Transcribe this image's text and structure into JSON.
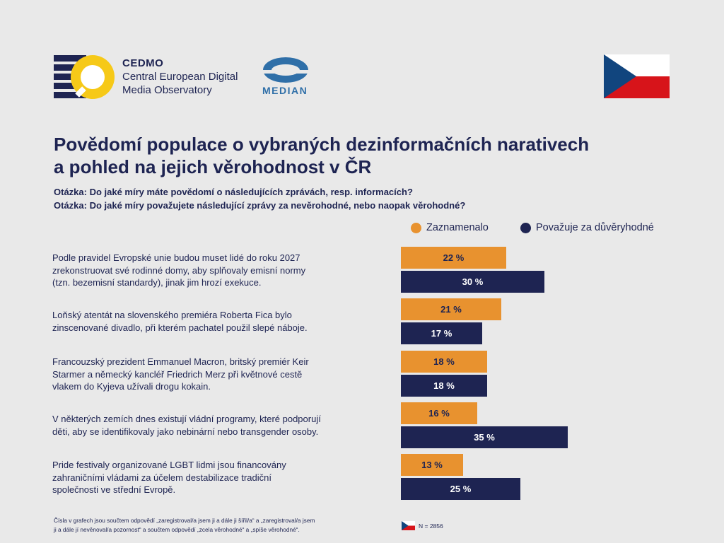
{
  "header": {
    "cedmo_name": "CEDMO",
    "cedmo_line1": "Central European Digital",
    "cedmo_line2": "Media Observatory",
    "median_name": "MEDIAN"
  },
  "title_line1": "Povědomí populace o vybraných dezinformačních narativech",
  "title_line2": "a pohled na jejich věrohodnost v ČR",
  "question1": "Otázka: Do jaké míry máte povědomí o následujících zprávách, resp. informacích?",
  "question2": "Otázka: Do jaké míry považujete následující zprávy za nevěrohodné, nebo naopak věrohodné?",
  "colors": {
    "orange": "#e8922f",
    "navy": "#1e2452",
    "background": "#e9e9e9"
  },
  "chart_data": {
    "type": "bar",
    "orientation": "horizontal",
    "categories": [
      "Podle pravidel Evropské unie budou muset lidé do roku 2027 zrekonstruovat své rodinné domy, aby splňovaly emisní normy (tzn. bezemisní standardy), jinak jim hrozí exekuce.",
      "Loňský atentát na slovenského premiéra Roberta Fica bylo zinscenované divadlo, při kterém pachatel použil slepé náboje.",
      "Francouzský prezident Emmanuel Macron, britský premiér Keir Starmer a německý kancléř Friedrich Merz při květnové cestě vlakem do Kyjeva užívali drogu kokain.",
      "V některých zemích dnes existují vládní programy, které podporují děti, aby se identifikovaly jako nebinární nebo transgender osoby.",
      "Pride festivaly organizované LGBT lidmi jsou financovány zahraničními vládami za účelem destabilizace tradiční společnosti ve střední Evropě."
    ],
    "series": [
      {
        "name": "Zaznamenalo",
        "color": "#e8922f",
        "values": [
          22,
          21,
          18,
          16,
          13
        ],
        "labels": [
          "22 %",
          "21 %",
          "18 %",
          "16 %",
          "13 %"
        ]
      },
      {
        "name": "Považuje za důvěryhodné",
        "color": "#1e2452",
        "values": [
          30,
          17,
          18,
          35,
          25
        ],
        "labels": [
          "30 %",
          "17 %",
          "18 %",
          "35 %",
          "25 %"
        ]
      }
    ],
    "legend_position": "top-right",
    "unit": "%"
  },
  "rows": [
    {
      "lines": [
        "Podle pravidel Evropské unie budou muset lidé do roku 2027",
        "zrekonstruovat své rodinné domy, aby splňovaly emisní normy",
        "(tzn. bezemisní standardy), jinak jim hrozí exekuce."
      ]
    },
    {
      "lines": [
        "Loňský atentát na slovenského premiéra Roberta Fica bylo",
        "zinscenované divadlo, při kterém pachatel použil slepé náboje."
      ]
    },
    {
      "lines": [
        "Francouzský prezident Emmanuel Macron, britský premiér Keir",
        "Starmer a německý kancléř Friedrich Merz při květnové cestě",
        "vlakem do Kyjeva užívali drogu kokain."
      ]
    },
    {
      "lines": [
        "V některých zemích dnes existují vládní programy, které podporují",
        "děti, aby se identifikovaly jako nebinární nebo transgender osoby."
      ]
    },
    {
      "lines": [
        "Pride festivaly organizované LGBT lidmi jsou financovány",
        "zahraničními vládami za účelem destabilizace tradiční",
        "společnosti ve střední Evropě."
      ]
    }
  ],
  "footnote_line1": "Čísla v grafech jsou součtem odpovědí „zaregistroval/a jsem ji a dále ji šířil/a“ a „zaregistroval/a jsem",
  "footnote_line2": "ji a dále jí nevěnoval/a pozornost“ a součtem odpovědí „zcela věrohodné“ a „spíše věrohodné“.",
  "sample_size": "N = 2856"
}
